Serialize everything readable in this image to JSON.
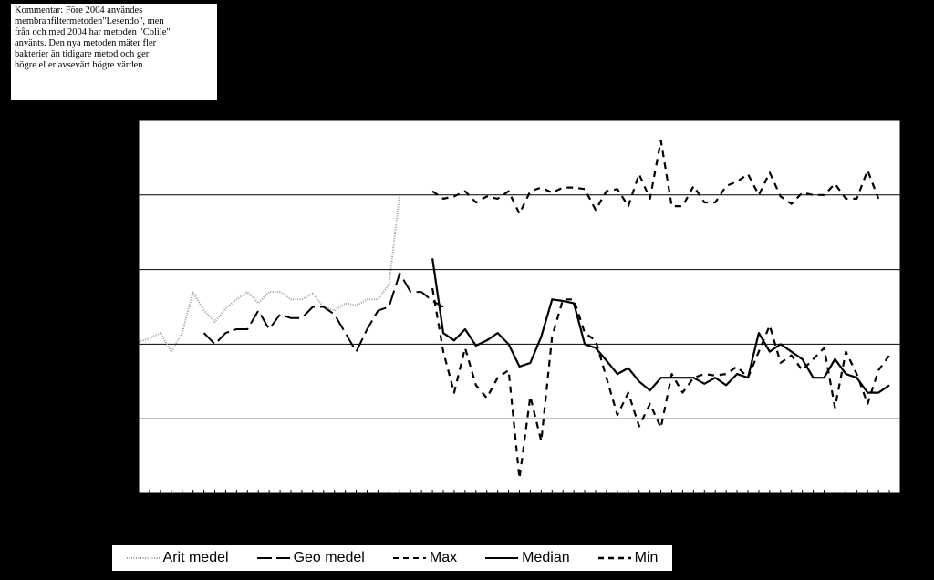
{
  "comment": {
    "lines": [
      "Kommentar: Före 2004 användes",
      " membranfiltermetoden\"Lesendo\", men",
      "från och med 2004 har metoden \"Colile\"",
      "använts.  Den nya metoden mäter fler",
      "bakterier än tidigare metod och ger",
      "högre eller avsevärt högre värden."
    ]
  },
  "chart_data": {
    "type": "line",
    "title": "",
    "xlabel": "",
    "ylabel": "",
    "x_tick_count": 71,
    "ylim": [
      0,
      5
    ],
    "y_gridlines": [
      1,
      2,
      3,
      4
    ],
    "grid": true,
    "legend_placement": "bottom",
    "series": [
      {
        "name": "Arit medel",
        "key": "arit",
        "color": "#9a9a9a",
        "style": "dotted",
        "values": [
          2.03,
          2.08,
          2.15,
          1.9,
          2.15,
          2.7,
          2.45,
          2.3,
          2.48,
          2.6,
          2.7,
          2.55,
          2.7,
          2.7,
          2.6,
          2.6,
          2.68,
          2.5,
          2.45,
          2.55,
          2.52,
          2.6,
          2.6,
          2.8,
          4.02
        ]
      },
      {
        "name": "Geo medel",
        "key": "geo",
        "color": "#000000",
        "style": "longdash",
        "values": [
          null,
          null,
          null,
          null,
          null,
          null,
          2.15,
          2.0,
          2.15,
          2.2,
          2.2,
          2.45,
          2.2,
          2.4,
          2.35,
          2.35,
          2.5,
          2.5,
          2.4,
          2.15,
          1.9,
          2.2,
          2.45,
          2.5,
          2.95,
          2.7,
          2.7,
          2.58,
          2.5
        ]
      },
      {
        "name": "Max",
        "key": "max",
        "color": "#000000",
        "style": "dash",
        "values": [
          null,
          null,
          null,
          null,
          null,
          null,
          null,
          null,
          null,
          null,
          null,
          null,
          null,
          null,
          null,
          null,
          null,
          null,
          null,
          null,
          null,
          null,
          null,
          null,
          null,
          null,
          null,
          4.05,
          3.95,
          3.98,
          4.05,
          3.9,
          3.98,
          3.95,
          4.05,
          3.75,
          4.05,
          4.1,
          4.03,
          4.1,
          4.1,
          4.08,
          3.8,
          4.05,
          4.08,
          3.85,
          4.28,
          3.95,
          4.73,
          3.85,
          3.85,
          4.12,
          3.9,
          3.9,
          4.12,
          4.18,
          4.28,
          4.0,
          4.3,
          3.98,
          3.88,
          4.03,
          4.0,
          4.0,
          4.15,
          3.95,
          3.95,
          4.33,
          3.95
        ]
      },
      {
        "name": "Median",
        "key": "median",
        "color": "#000000",
        "style": "solid",
        "values": [
          null,
          null,
          null,
          null,
          null,
          null,
          null,
          null,
          null,
          null,
          null,
          null,
          null,
          null,
          null,
          null,
          null,
          null,
          null,
          null,
          null,
          null,
          null,
          null,
          null,
          null,
          null,
          3.15,
          2.15,
          2.05,
          2.2,
          1.98,
          2.05,
          2.15,
          2.0,
          1.7,
          1.75,
          2.1,
          2.6,
          2.58,
          2.55,
          2.0,
          1.95,
          1.78,
          1.6,
          1.68,
          1.5,
          1.38,
          1.55,
          1.55,
          1.55,
          1.55,
          1.47,
          1.55,
          1.45,
          1.6,
          1.55,
          2.15,
          1.9,
          2.0,
          1.9,
          1.8,
          1.55,
          1.55,
          1.8,
          1.6,
          1.55,
          1.35,
          1.35,
          1.45
        ]
      },
      {
        "name": "Min",
        "key": "min",
        "color": "#000000",
        "style": "dash",
        "values": [
          null,
          null,
          null,
          null,
          null,
          null,
          null,
          null,
          null,
          null,
          null,
          null,
          null,
          null,
          null,
          null,
          null,
          null,
          null,
          null,
          null,
          null,
          null,
          null,
          null,
          null,
          null,
          2.75,
          1.9,
          1.35,
          1.95,
          1.45,
          1.28,
          1.55,
          1.65,
          0.2,
          1.3,
          0.7,
          2.1,
          2.6,
          2.6,
          2.15,
          2.05,
          1.55,
          1.05,
          1.35,
          0.9,
          1.2,
          0.88,
          1.6,
          1.35,
          1.55,
          1.6,
          1.58,
          1.6,
          1.7,
          1.55,
          1.9,
          2.25,
          1.75,
          1.85,
          1.65,
          1.8,
          1.95,
          1.15,
          1.9,
          1.6,
          1.2,
          1.65,
          1.85
        ]
      }
    ]
  }
}
